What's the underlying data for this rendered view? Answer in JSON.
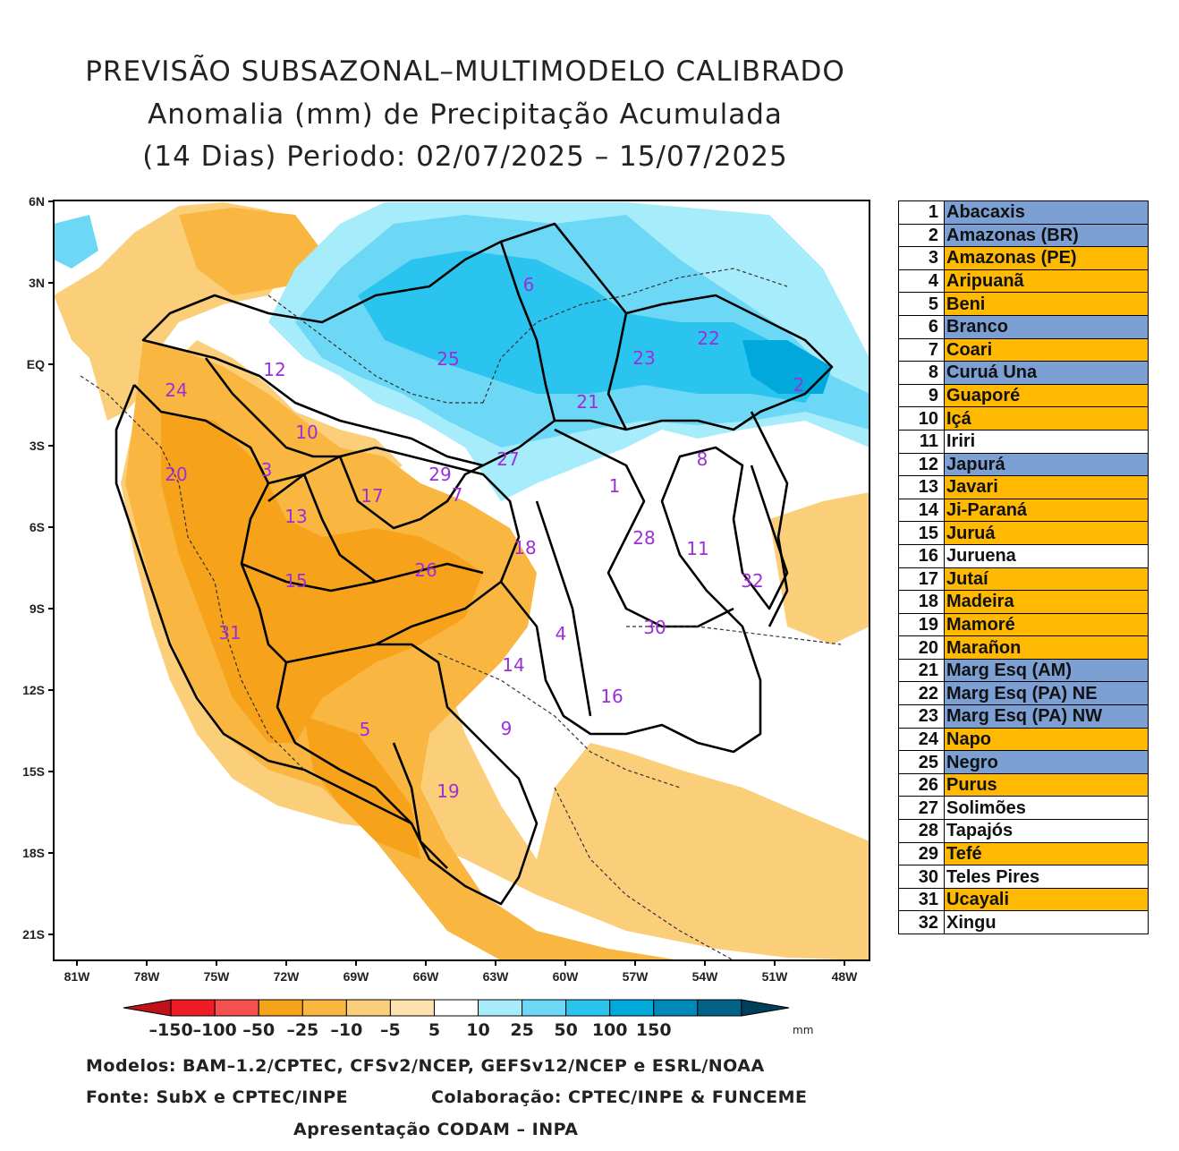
{
  "title": {
    "line1": "PREVISÃO SUBSAZONAL–MULTIMODELO CALIBRADO",
    "line2": "Anomalia (mm) de Precipitação Acumulada",
    "line3": "(14 Dias) Periodo: 02/07/2025 – 15/07/2025"
  },
  "map": {
    "lat_labels": [
      "6N",
      "3N",
      "EQ",
      "3S",
      "6S",
      "9S",
      "12S",
      "15S",
      "18S",
      "21S"
    ],
    "lon_labels": [
      "81W",
      "78W",
      "75W",
      "72W",
      "69W",
      "66W",
      "63W",
      "60W",
      "57W",
      "54W",
      "51W",
      "48W"
    ],
    "basin_map_labels": [
      "1",
      "2",
      "3",
      "4",
      "5",
      "6",
      "7",
      "8",
      "9",
      "10",
      "11",
      "12",
      "13",
      "14",
      "15",
      "16",
      "17",
      "18",
      "19",
      "20",
      "21",
      "22",
      "23",
      "24",
      "25",
      "26",
      "27",
      "28",
      "29",
      "30",
      "31",
      "32"
    ],
    "label_color": "#9b30d9"
  },
  "colorbar": {
    "tick_labels": [
      "–150",
      "–100",
      "–50",
      "–25",
      "–10",
      "–5",
      "5",
      "10",
      "25",
      "50",
      "100",
      "150"
    ],
    "unit": "mm",
    "colors": [
      "#c0101a",
      "#ee1c25",
      "#f55050",
      "#f7a21b",
      "#f9b640",
      "#fbcf7a",
      "#fde2ad",
      "#ffffff",
      "#a6ecfa",
      "#6cd8f5",
      "#2bc4ef",
      "#00a8dc",
      "#0089b8",
      "#006287",
      "#003f5c"
    ]
  },
  "footer": {
    "models": "Modelos: BAM–1.2/CPTEC, CFSv2/NCEP, GEFSv12/NCEP e ESRL/NOAA",
    "source": "Fonte: SubX e CPTEC/INPE",
    "collab": "Colaboração: CPTEC/INPE & FUNCEME",
    "presentation": "Apresentação CODAM – INPA"
  },
  "legend": {
    "category_colors": {
      "wet": "#7da0d4",
      "dry": "#ffb900",
      "neutral": "#ffffff"
    },
    "basins": [
      {
        "num": "1",
        "name": "Abacaxis",
        "category": "wet"
      },
      {
        "num": "2",
        "name": "Amazonas (BR)",
        "category": "wet"
      },
      {
        "num": "3",
        "name": "Amazonas (PE)",
        "category": "dry"
      },
      {
        "num": "4",
        "name": "Aripuanã",
        "category": "dry"
      },
      {
        "num": "5",
        "name": "Beni",
        "category": "dry"
      },
      {
        "num": "6",
        "name": "Branco",
        "category": "wet"
      },
      {
        "num": "7",
        "name": "Coari",
        "category": "dry"
      },
      {
        "num": "8",
        "name": "Curuá Una",
        "category": "wet"
      },
      {
        "num": "9",
        "name": "Guaporé",
        "category": "dry"
      },
      {
        "num": "10",
        "name": "Içá",
        "category": "dry"
      },
      {
        "num": "11",
        "name": "Iriri",
        "category": "neutral"
      },
      {
        "num": "12",
        "name": "Japurá",
        "category": "wet"
      },
      {
        "num": "13",
        "name": "Javari",
        "category": "dry"
      },
      {
        "num": "14",
        "name": "Ji-Paraná",
        "category": "dry"
      },
      {
        "num": "15",
        "name": "Juruá",
        "category": "dry"
      },
      {
        "num": "16",
        "name": "Juruena",
        "category": "neutral"
      },
      {
        "num": "17",
        "name": "Jutaí",
        "category": "dry"
      },
      {
        "num": "18",
        "name": "Madeira",
        "category": "dry"
      },
      {
        "num": "19",
        "name": "Mamoré",
        "category": "dry"
      },
      {
        "num": "20",
        "name": "Marañon",
        "category": "dry"
      },
      {
        "num": "21",
        "name": "Marg Esq (AM)",
        "category": "wet"
      },
      {
        "num": "22",
        "name": "Marg Esq (PA) NE",
        "category": "wet"
      },
      {
        "num": "23",
        "name": "Marg Esq (PA) NW",
        "category": "wet"
      },
      {
        "num": "24",
        "name": "Napo",
        "category": "dry"
      },
      {
        "num": "25",
        "name": "Negro",
        "category": "wet"
      },
      {
        "num": "26",
        "name": "Purus",
        "category": "dry"
      },
      {
        "num": "27",
        "name": "Solimões",
        "category": "neutral"
      },
      {
        "num": "28",
        "name": "Tapajós",
        "category": "neutral"
      },
      {
        "num": "29",
        "name": "Tefé",
        "category": "dry"
      },
      {
        "num": "30",
        "name": "Teles Pires",
        "category": "neutral"
      },
      {
        "num": "31",
        "name": "Ucayali",
        "category": "dry"
      },
      {
        "num": "32",
        "name": "Xingu",
        "category": "neutral"
      }
    ]
  }
}
